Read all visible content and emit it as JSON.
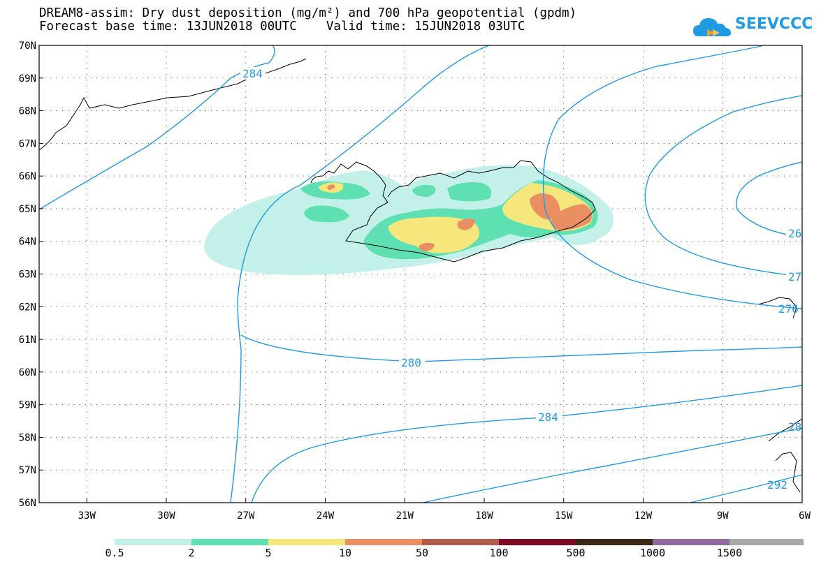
{
  "header": {
    "title_line1": "DREAM8-assim: Dry dust deposition (mg/m²) and 700 hPa geopotential (gpdm)",
    "title_line2": "Forecast base time: 13JUN2018 00UTC    Valid time: 15JUN2018 03UTC",
    "logo_text": "SEEVCCC"
  },
  "map": {
    "lat_labels": [
      "70N",
      "69N",
      "68N",
      "67N",
      "66N",
      "65N",
      "64N",
      "63N",
      "62N",
      "61N",
      "60N",
      "59N",
      "58N",
      "57N",
      "56N"
    ],
    "lon_labels": [
      "33W",
      "30W",
      "27W",
      "24W",
      "21W",
      "18W",
      "15W",
      "12W",
      "9W",
      "6W"
    ],
    "contour_labels": [
      "284",
      "280",
      "284",
      "26",
      "27",
      "276",
      "292",
      "28"
    ],
    "contour_color": "#1e9be3",
    "coastline_color": "#000000",
    "grid": "dotted"
  },
  "legend": {
    "labels": [
      "0.5",
      "2",
      "5",
      "10",
      "50",
      "100",
      "500",
      "1000",
      "1500"
    ],
    "colors": [
      "#c3f1ea",
      "#5fe0b2",
      "#f6e77c",
      "#e98f62",
      "#b25c4a",
      "#7d0a22",
      "#3a2716",
      "#8f6a9a",
      "#a9a9a9"
    ]
  }
}
